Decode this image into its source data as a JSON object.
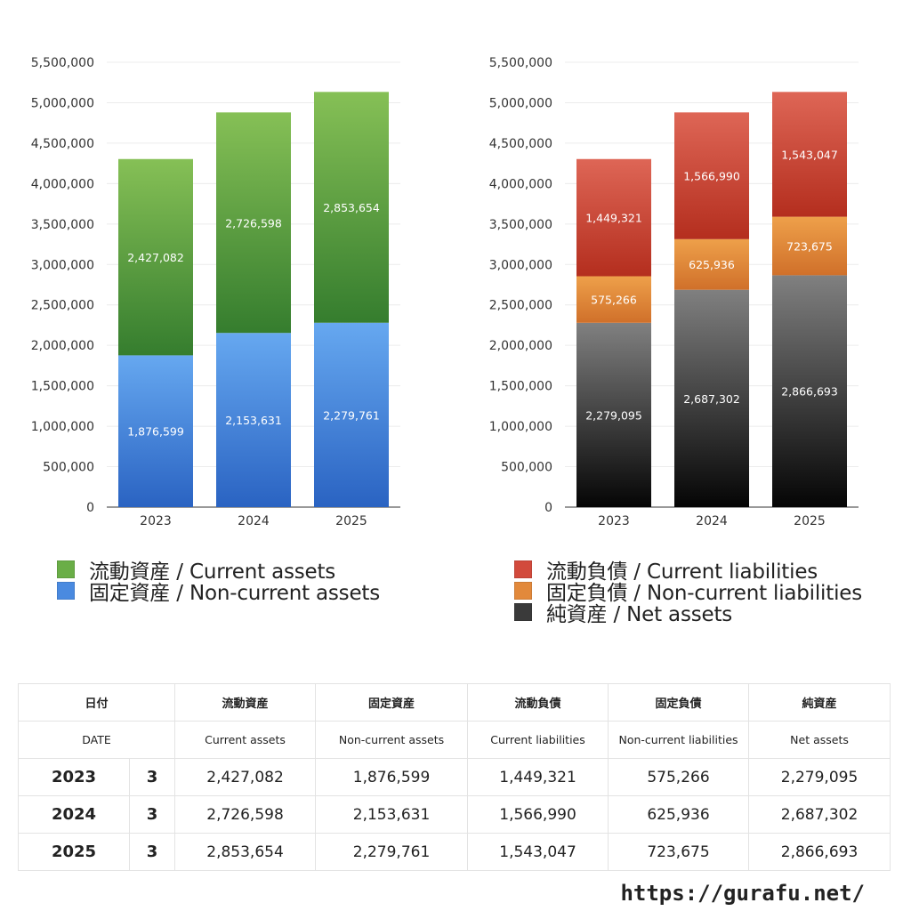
{
  "chart_data": [
    {
      "type": "bar",
      "stacked": true,
      "categories": [
        "2023",
        "2024",
        "2025"
      ],
      "ylim": [
        0,
        5500000
      ],
      "yticks": [
        0,
        500000,
        1000000,
        1500000,
        2000000,
        2500000,
        3000000,
        3500000,
        4000000,
        4500000,
        5000000,
        5500000
      ],
      "ytick_labels": [
        "0",
        "500,000",
        "1,000,000",
        "1,500,000",
        "2,000,000",
        "2,500,000",
        "3,000,000",
        "3,500,000",
        "4,000,000",
        "4,500,000",
        "5,000,000",
        "5,500,000"
      ],
      "grid": true,
      "legend_position": "bottom",
      "series": [
        {
          "name": "固定資産 / Non-current assets",
          "values": [
            1876599,
            2153631,
            2279761
          ],
          "labels": [
            "1,876,599",
            "2,153,631",
            "2,279,761"
          ],
          "color_top": "#66a8f0",
          "color_bottom": "#2a63c2"
        },
        {
          "name": "流動資産 / Current assets",
          "values": [
            2427082,
            2726598,
            2853654
          ],
          "labels": [
            "2,427,082",
            "2,726,598",
            "2,853,654"
          ],
          "color_top": "#86c056",
          "color_bottom": "#357d2e"
        }
      ]
    },
    {
      "type": "bar",
      "stacked": true,
      "categories": [
        "2023",
        "2024",
        "2025"
      ],
      "ylim": [
        0,
        5500000
      ],
      "yticks": [
        0,
        500000,
        1000000,
        1500000,
        2000000,
        2500000,
        3000000,
        3500000,
        4000000,
        4500000,
        5000000,
        5500000
      ],
      "ytick_labels": [
        "0",
        "500,000",
        "1,000,000",
        "1,500,000",
        "2,000,000",
        "2,500,000",
        "3,000,000",
        "3,500,000",
        "4,000,000",
        "4,500,000",
        "5,000,000",
        "5,500,000"
      ],
      "grid": true,
      "legend_position": "bottom",
      "series": [
        {
          "name": "純資産 / Net assets",
          "values": [
            2279095,
            2687302,
            2866693
          ],
          "labels": [
            "2,279,095",
            "2,687,302",
            "2,866,693"
          ],
          "color_top": "#808080",
          "color_bottom": "#050505"
        },
        {
          "name": "固定負債 / Non-current liabilities",
          "values": [
            575266,
            625936,
            723675
          ],
          "labels": [
            "575,266",
            "625,936",
            "723,675"
          ],
          "color_top": "#eea04a",
          "color_bottom": "#d0702a"
        },
        {
          "name": "流動負債 / Current liabilities",
          "values": [
            1449321,
            1566990,
            1543047
          ],
          "labels": [
            "1,449,321",
            "1,566,990",
            "1,543,047"
          ],
          "color_top": "#de6656",
          "color_bottom": "#b42e1e"
        }
      ]
    }
  ],
  "legend_assets": [
    {
      "label": "流動資産 / Current assets",
      "color": "#6aae47"
    },
    {
      "label": "固定資産 / Non-current assets",
      "color": "#4a8ae0"
    }
  ],
  "legend_liab": [
    {
      "label": "流動負債 / Current liabilities",
      "color": "#d24a3c"
    },
    {
      "label": "固定負債 / Non-current liabilities",
      "color": "#e2893b"
    },
    {
      "label": "純資産 / Net assets",
      "color": "#3a3a3a"
    }
  ],
  "table": {
    "header_ja": [
      "日付",
      "流動資産",
      "固定資産",
      "流動負債",
      "固定負債",
      "純資産"
    ],
    "header_en": [
      "DATE",
      "Current assets",
      "Non-current assets",
      "Current liabilities",
      "Non-current liabilities",
      "Net assets"
    ],
    "rows": [
      {
        "year": "2023",
        "month": "3",
        "values": [
          "2,427,082",
          "1,876,599",
          "1,449,321",
          "575,266",
          "2,279,095"
        ]
      },
      {
        "year": "2024",
        "month": "3",
        "values": [
          "2,726,598",
          "2,153,631",
          "1,566,990",
          "625,936",
          "2,687,302"
        ]
      },
      {
        "year": "2025",
        "month": "3",
        "values": [
          "2,853,654",
          "2,279,761",
          "1,543,047",
          "723,675",
          "2,866,693"
        ]
      }
    ]
  },
  "footer": {
    "url": "https://gurafu.net/"
  }
}
